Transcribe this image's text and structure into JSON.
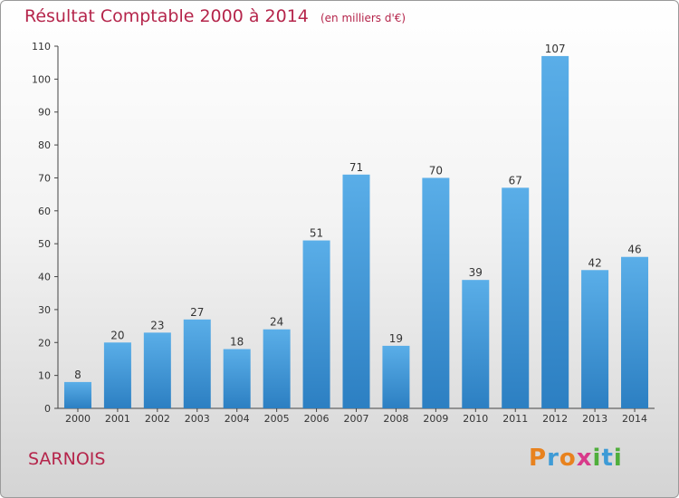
{
  "title": "Résultat Comptable 2000 à 2014",
  "unit": "(en milliers d'€)",
  "commune": "SARNOIS",
  "logo": {
    "letters": [
      "P",
      "r",
      "o",
      "x",
      "i",
      "t",
      "i"
    ],
    "colors": [
      "#e8821e",
      "#3e9bd6",
      "#e8821e",
      "#d83a8a",
      "#4fae3b",
      "#3e9bd6",
      "#4fae3b"
    ]
  },
  "chart_data": {
    "type": "bar",
    "categories": [
      "2000",
      "2001",
      "2002",
      "2003",
      "2004",
      "2005",
      "2006",
      "2007",
      "2008",
      "2009",
      "2010",
      "2011",
      "2012",
      "2013",
      "2014"
    ],
    "values": [
      8,
      20,
      23,
      27,
      18,
      24,
      51,
      71,
      19,
      70,
      39,
      67,
      107,
      42,
      46
    ],
    "ylim": [
      0,
      110
    ],
    "yticks": [
      0,
      10,
      20,
      30,
      40,
      50,
      60,
      70,
      80,
      90,
      100,
      110
    ],
    "grid": false,
    "bar_color": "#3f97dd",
    "title": "Résultat Comptable 2000 à 2014",
    "xlabel": "",
    "ylabel": ""
  }
}
